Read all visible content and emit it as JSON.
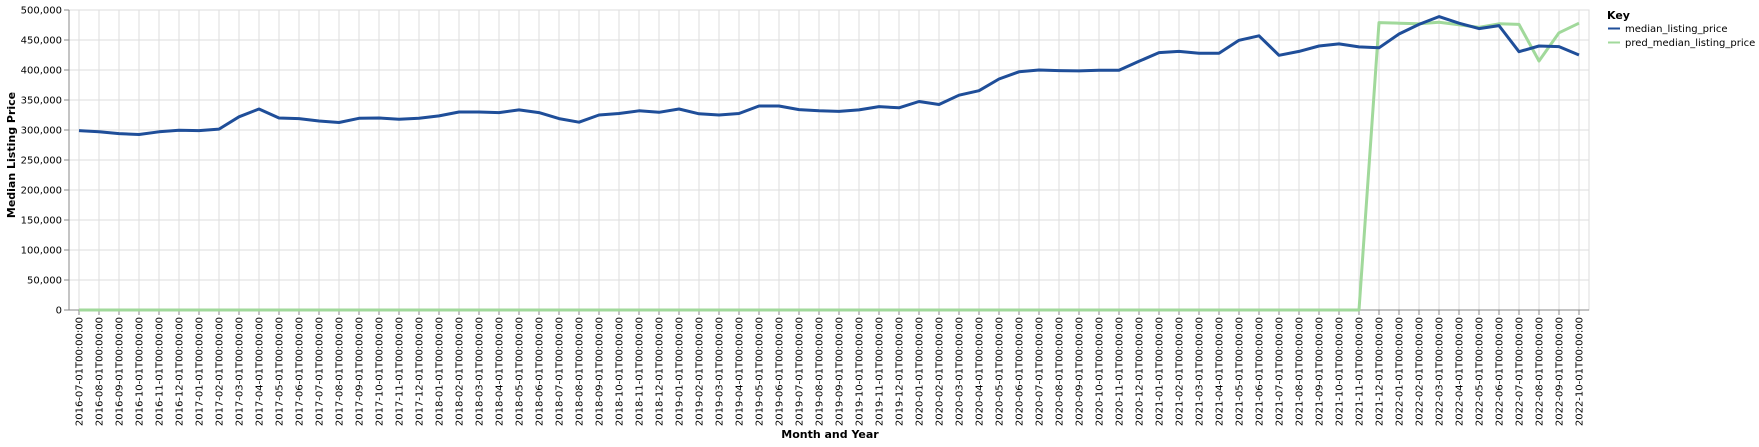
{
  "chart_data": {
    "type": "line",
    "xlabel": "Month and Year",
    "ylabel": "Median Listing Price",
    "ylim": [
      0,
      500000
    ],
    "yticks": [
      0,
      50000,
      100000,
      150000,
      200000,
      250000,
      300000,
      350000,
      400000,
      450000,
      500000
    ],
    "grid": true,
    "legend": {
      "title": "Key",
      "placement": "top-right"
    },
    "x": [
      "2016-07-01T00:00:00",
      "2016-08-01T00:00:00",
      "2016-09-01T00:00:00",
      "2016-10-01T00:00:00",
      "2016-11-01T00:00:00",
      "2016-12-01T00:00:00",
      "2017-01-01T00:00:00",
      "2017-02-01T00:00:00",
      "2017-03-01T00:00:00",
      "2017-04-01T00:00:00",
      "2017-05-01T00:00:00",
      "2017-06-01T00:00:00",
      "2017-07-01T00:00:00",
      "2017-08-01T00:00:00",
      "2017-09-01T00:00:00",
      "2017-10-01T00:00:00",
      "2017-11-01T00:00:00",
      "2017-12-01T00:00:00",
      "2018-01-01T00:00:00",
      "2018-02-01T00:00:00",
      "2018-03-01T00:00:00",
      "2018-04-01T00:00:00",
      "2018-05-01T00:00:00",
      "2018-06-01T00:00:00",
      "2018-07-01T00:00:00",
      "2018-08-01T00:00:00",
      "2018-09-01T00:00:00",
      "2018-10-01T00:00:00",
      "2018-11-01T00:00:00",
      "2018-12-01T00:00:00",
      "2019-01-01T00:00:00",
      "2019-02-01T00:00:00",
      "2019-03-01T00:00:00",
      "2019-04-01T00:00:00",
      "2019-05-01T00:00:00",
      "2019-06-01T00:00:00",
      "2019-07-01T00:00:00",
      "2019-08-01T00:00:00",
      "2019-09-01T00:00:00",
      "2019-10-01T00:00:00",
      "2019-11-01T00:00:00",
      "2019-12-01T00:00:00",
      "2020-01-01T00:00:00",
      "2020-02-01T00:00:00",
      "2020-03-01T00:00:00",
      "2020-04-01T00:00:00",
      "2020-05-01T00:00:00",
      "2020-06-01T00:00:00",
      "2020-07-01T00:00:00",
      "2020-08-01T00:00:00",
      "2020-09-01T00:00:00",
      "2020-10-01T00:00:00",
      "2020-11-01T00:00:00",
      "2020-12-01T00:00:00",
      "2021-01-01T00:00:00",
      "2021-02-01T00:00:00",
      "2021-03-01T00:00:00",
      "2021-04-01T00:00:00",
      "2021-05-01T00:00:00",
      "2021-06-01T00:00:00",
      "2021-07-01T00:00:00",
      "2021-08-01T00:00:00",
      "2021-09-01T00:00:00",
      "2021-10-01T00:00:00",
      "2021-11-01T00:00:00",
      "2021-12-01T00:00:00",
      "2022-01-01T00:00:00",
      "2022-02-01T00:00:00",
      "2022-03-01T00:00:00",
      "2022-04-01T00:00:00",
      "2022-05-01T00:00:00",
      "2022-06-01T00:00:00",
      "2022-07-01T00:00:00",
      "2022-08-01T00:00:00",
      "2022-09-01T00:00:00",
      "2022-10-01T00:00:00"
    ],
    "series": [
      {
        "name": "median_listing_price",
        "color": "#1f4e99",
        "values": [
          299000,
          297000,
          294000,
          292500,
          297000,
          299500,
          299000,
          301500,
          322000,
          335000,
          320000,
          319000,
          315000,
          312500,
          319500,
          320000,
          318000,
          319500,
          323500,
          330000,
          330000,
          329000,
          333500,
          329000,
          319000,
          313000,
          325000,
          327500,
          332000,
          329500,
          335000,
          327000,
          325000,
          327500,
          340000,
          340000,
          334000,
          332000,
          331000,
          333500,
          339000,
          337000,
          347500,
          342500,
          358000,
          365500,
          385000,
          397000,
          400000,
          399000,
          398500,
          399500,
          399500,
          414500,
          429000,
          431000,
          428000,
          428000,
          449500,
          457000,
          424500,
          431000,
          440000,
          443500,
          438500,
          437000,
          460000,
          476000,
          489000,
          478000,
          469000,
          474000,
          430500,
          440000,
          439000,
          425000
        ]
      },
      {
        "name": "pred_median_listing_price",
        "color": "#a1d99b",
        "values": [
          0,
          0,
          0,
          0,
          0,
          0,
          0,
          0,
          0,
          0,
          0,
          0,
          0,
          0,
          0,
          0,
          0,
          0,
          0,
          0,
          0,
          0,
          0,
          0,
          0,
          0,
          0,
          0,
          0,
          0,
          0,
          0,
          0,
          0,
          0,
          0,
          0,
          0,
          0,
          0,
          0,
          0,
          0,
          0,
          0,
          0,
          0,
          0,
          0,
          0,
          0,
          0,
          0,
          0,
          0,
          0,
          0,
          0,
          0,
          0,
          0,
          0,
          0,
          0,
          0,
          479000,
          478000,
          477000,
          479500,
          475500,
          471000,
          477000,
          476000,
          415000,
          462000,
          478000
        ]
      }
    ]
  }
}
